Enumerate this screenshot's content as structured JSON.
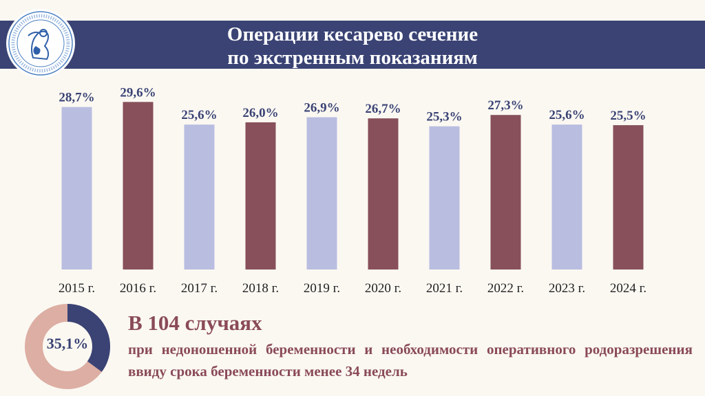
{
  "header": {
    "title_line1": "Операции кесарево сечение",
    "title_line2": "по экстренным показаниям"
  },
  "chart_data": {
    "type": "bar",
    "categories": [
      "2015 г.",
      "2016 г.",
      "2017 г.",
      "2018 г.",
      "2019 г.",
      "2020 г.",
      "2021 г.",
      "2022 г.",
      "2023 г.",
      "2024 г."
    ],
    "values": [
      28.7,
      29.6,
      25.6,
      26.0,
      26.9,
      26.7,
      25.3,
      27.3,
      25.6,
      25.5
    ],
    "labels": [
      "28,7%",
      "29,6%",
      "25,6%",
      "26,0%",
      "26,9%",
      "26,7%",
      "25,3%",
      "27,3%",
      "25,6%",
      "25,5%"
    ],
    "colors": [
      "#b9bde0",
      "#87505a",
      "#b9bde0",
      "#87505a",
      "#b9bde0",
      "#87505a",
      "#b9bde0",
      "#87505a",
      "#b9bde0",
      "#87505a"
    ],
    "title": "",
    "xlabel": "",
    "ylabel": "",
    "ylim": [
      0,
      30
    ],
    "grid": false
  },
  "summary": {
    "donut_value": 35.1,
    "donut_label": "35,1%",
    "donut_colors": {
      "highlight": "#3a4374",
      "rest": "#ddaea3"
    },
    "headline": "В 104 случаях",
    "text": "при недоношенной беременности и необходимости оперативного родоразрешения ввиду срока беременности менее 34 недель"
  }
}
